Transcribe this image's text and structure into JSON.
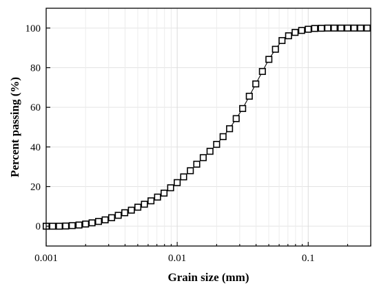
{
  "chart_data": {
    "type": "scatter",
    "title": "",
    "xlabel": "Grain size (mm)",
    "ylabel": "Percent passing (%)",
    "x_scale": "log",
    "xlim": [
      0.001,
      0.3
    ],
    "ylim": [
      -10,
      110
    ],
    "x_ticks": [
      0.001,
      0.01,
      0.1
    ],
    "x_tick_labels": [
      "0.001",
      "0.01",
      "0.1"
    ],
    "y_ticks": [
      0,
      20,
      40,
      60,
      80,
      100
    ],
    "y_tick_labels": [
      "0",
      "20",
      "40",
      "60",
      "80",
      "100"
    ],
    "grid": true,
    "marker": "open-square",
    "connected": true,
    "series": [
      {
        "x": [
          0.001,
          0.00112,
          0.00126,
          0.00141,
          0.00158,
          0.00178,
          0.002,
          0.00224,
          0.00251,
          0.00282,
          0.00316,
          0.00355,
          0.00398,
          0.00447,
          0.00501,
          0.00562,
          0.00631,
          0.00708,
          0.00794,
          0.00891,
          0.01,
          0.0112,
          0.0126,
          0.0141,
          0.0158,
          0.0178,
          0.02,
          0.0224,
          0.0251,
          0.0282,
          0.0316,
          0.0355,
          0.0398,
          0.0447,
          0.0501,
          0.0562,
          0.0631,
          0.0708,
          0.0794,
          0.0891,
          0.1,
          0.112,
          0.126,
          0.141,
          0.158,
          0.178,
          0.2,
          0.224,
          0.251,
          0.282
        ],
        "y": [
          0,
          0,
          0,
          0.1,
          0.3,
          0.6,
          1.1,
          1.7,
          2.4,
          3.2,
          4.3,
          5.5,
          6.8,
          8.1,
          9.6,
          11.1,
          12.8,
          14.7,
          16.7,
          19.4,
          22.0,
          24.9,
          28.0,
          31.3,
          34.6,
          37.8,
          41.3,
          45.2,
          49.2,
          54.3,
          59.4,
          65.6,
          71.8,
          78.1,
          84.2,
          89.3,
          93.7,
          96.1,
          97.8,
          98.8,
          99.4,
          99.8,
          99.9,
          100,
          100,
          100,
          100,
          100,
          100,
          100
        ]
      }
    ]
  }
}
